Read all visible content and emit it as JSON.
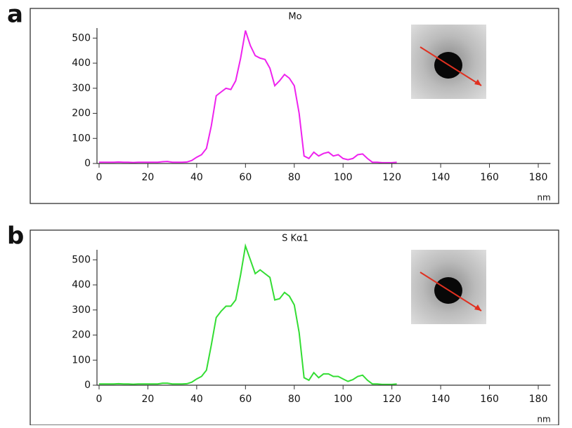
{
  "chart_data": [
    {
      "type": "line",
      "panel_label": "a",
      "title": "Mo",
      "x_label": "nm",
      "color": "#ee22ee",
      "x": [
        0,
        2,
        4,
        6,
        8,
        10,
        12,
        14,
        16,
        18,
        20,
        22,
        24,
        26,
        28,
        30,
        32,
        34,
        36,
        38,
        40,
        42,
        44,
        46,
        48,
        50,
        52,
        54,
        56,
        58,
        60,
        62,
        64,
        66,
        68,
        70,
        72,
        74,
        76,
        78,
        80,
        82,
        84,
        86,
        88,
        90,
        92,
        94,
        96,
        98,
        100,
        102,
        104,
        106,
        108,
        110,
        112,
        114,
        116,
        118,
        120,
        122
      ],
      "values": [
        5,
        5,
        5,
        5,
        6,
        5,
        5,
        4,
        5,
        5,
        5,
        5,
        5,
        7,
        8,
        5,
        5,
        5,
        6,
        12,
        25,
        35,
        60,
        150,
        270,
        285,
        300,
        295,
        330,
        420,
        530,
        470,
        430,
        420,
        415,
        380,
        310,
        330,
        355,
        340,
        310,
        200,
        30,
        20,
        45,
        30,
        40,
        45,
        30,
        35,
        20,
        15,
        20,
        35,
        38,
        20,
        5,
        5,
        3,
        3,
        3,
        5
      ],
      "xlim": [
        0,
        185
      ],
      "xticks": [
        0,
        20,
        40,
        60,
        80,
        100,
        120,
        140,
        160,
        180
      ],
      "ylim": [
        0,
        540
      ],
      "yticks": [
        0,
        100,
        200,
        300,
        400,
        500
      ]
    },
    {
      "type": "line",
      "panel_label": "b",
      "title": "S Kα1",
      "x_label": "nm",
      "color": "#33dd33",
      "x": [
        0,
        2,
        4,
        6,
        8,
        10,
        12,
        14,
        16,
        18,
        20,
        22,
        24,
        26,
        28,
        30,
        32,
        34,
        36,
        38,
        40,
        42,
        44,
        46,
        48,
        50,
        52,
        54,
        56,
        58,
        60,
        62,
        64,
        66,
        68,
        70,
        72,
        74,
        76,
        78,
        80,
        82,
        84,
        86,
        88,
        90,
        92,
        94,
        96,
        98,
        100,
        102,
        104,
        106,
        108,
        110,
        112,
        114,
        116,
        118,
        120,
        122
      ],
      "values": [
        5,
        5,
        5,
        5,
        6,
        5,
        5,
        4,
        5,
        5,
        5,
        5,
        5,
        8,
        8,
        5,
        5,
        5,
        6,
        12,
        25,
        35,
        60,
        160,
        270,
        295,
        315,
        315,
        340,
        440,
        555,
        500,
        445,
        460,
        445,
        430,
        340,
        345,
        370,
        355,
        320,
        210,
        30,
        20,
        50,
        30,
        45,
        45,
        35,
        35,
        25,
        15,
        22,
        35,
        40,
        20,
        5,
        5,
        3,
        3,
        3,
        5
      ],
      "xlim": [
        0,
        185
      ],
      "xticks": [
        0,
        20,
        40,
        60,
        80,
        100,
        120,
        140,
        160,
        180
      ],
      "ylim": [
        0,
        540
      ],
      "yticks": [
        0,
        100,
        200,
        300,
        400,
        500
      ]
    }
  ]
}
